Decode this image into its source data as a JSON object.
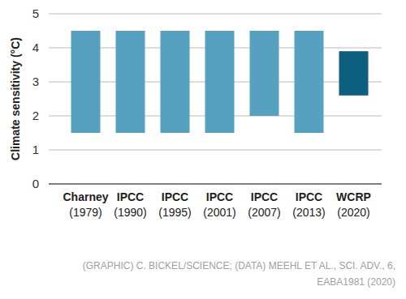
{
  "chart_data": {
    "type": "range_bar",
    "y_label": "Climate sensitivity (°C)",
    "categories": [
      "Charney\n(1979)",
      "IPCC\n(1990)",
      "IPCC\n(1995)",
      "IPCC\n(2001)",
      "IPCC\n(2007)",
      "IPCC\n(2013)",
      "WCRP\n(2020)"
    ],
    "low": [
      1.5,
      1.5,
      1.5,
      1.5,
      2,
      1.5,
      2.6
    ],
    "high": [
      4.5,
      4.5,
      4.5,
      4.5,
      4.5,
      4.5,
      3.9
    ],
    "colors": [
      "#56a0c0",
      "#56a0c0",
      "#56a0c0",
      "#56a0c0",
      "#56a0c0",
      "#56a0c0",
      "#0d5f80"
    ],
    "ylim": [
      0,
      5
    ],
    "yticks": [
      0,
      1,
      2,
      3,
      4,
      5
    ],
    "grid": true,
    "source": [
      "(GRAPHIC) C. BICKEL/SCIENCE; (DATA) MEEHL ET AL., SCI. ADV., 6,",
      "EABA1981 (2020)"
    ]
  }
}
